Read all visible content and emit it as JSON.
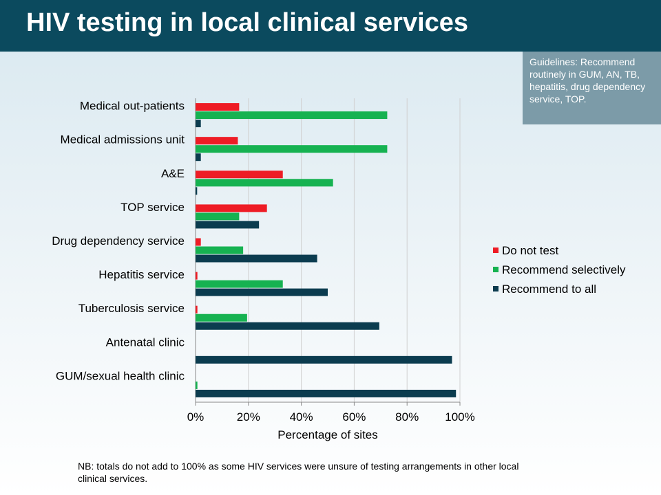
{
  "header": {
    "title": "HIV testing in local clinical services"
  },
  "guidelines": {
    "text": "Guidelines: Recommend routinely in GUM, AN, TB, hepatitis, drug dependency service, TOP."
  },
  "footnote": {
    "text": "NB: totals do not add to 100% as some HIV services were unsure of testing arrangements in other local clinical services."
  },
  "chart_data": {
    "type": "bar",
    "orientation": "horizontal",
    "title": "",
    "xlabel": "Percentage of sites",
    "ylabel": "",
    "xlim": [
      0,
      100
    ],
    "x_ticks": [
      "0%",
      "20%",
      "40%",
      "60%",
      "80%",
      "100%"
    ],
    "grid": "vertical",
    "legend_position": "right",
    "categories": [
      "Medical out-patients",
      "Medical admissions unit",
      "A&E",
      "TOP service",
      "Drug dependency service",
      "Hepatitis service",
      "Tuberculosis service",
      "Antenatal clinic",
      "GUM/sexual health clinic"
    ],
    "series": [
      {
        "name": "Do not test",
        "color": "#ee1c25",
        "values": [
          16.5,
          16,
          33,
          27,
          2,
          0.7,
          0.7,
          0,
          0
        ]
      },
      {
        "name": "Recommend selectively",
        "color": "#16b251",
        "values": [
          72.5,
          72.5,
          52,
          16.5,
          18,
          33,
          19.5,
          0,
          0.7
        ]
      },
      {
        "name": "Recommend to all",
        "color": "#0b3c4f",
        "values": [
          2,
          2,
          0.6,
          24,
          46,
          50,
          69.5,
          97,
          98.5
        ]
      }
    ]
  }
}
